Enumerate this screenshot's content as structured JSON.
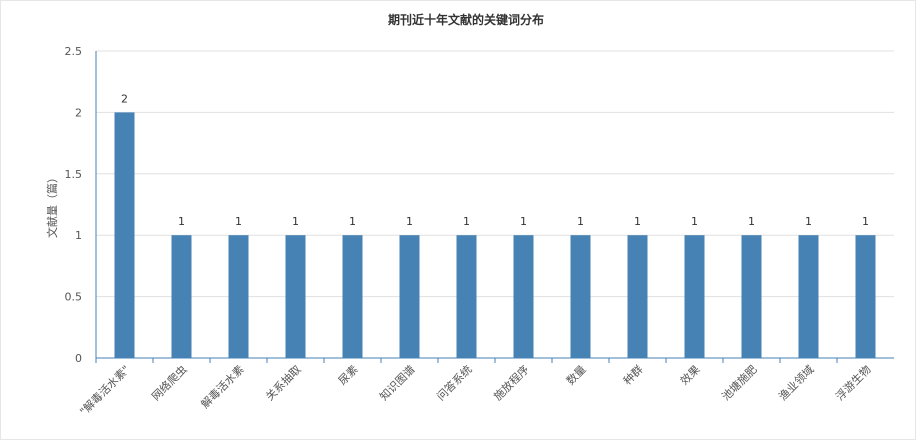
{
  "chart_data": {
    "type": "bar",
    "title": "期刊近十年文献的关键词分布",
    "xlabel": "",
    "ylabel": "文献量（篇）",
    "ylim": [
      0,
      2.5
    ],
    "yticks": [
      "0",
      "0.5",
      "1",
      "1.5",
      "2",
      "2.5"
    ],
    "categories": [
      "\"解毒活水素\"",
      "网络爬虫",
      "解毒活水素",
      "关系抽取",
      "尿素",
      "知识图谱",
      "问答系统",
      "施放程序",
      "数量",
      "种群",
      "效果",
      "池塘施肥",
      "渔业领域",
      "浮游生物"
    ],
    "values": [
      2,
      1,
      1,
      1,
      1,
      1,
      1,
      1,
      1,
      1,
      1,
      1,
      1,
      1
    ],
    "bar_color": "#4682b4",
    "grid": true,
    "legend": "none"
  }
}
